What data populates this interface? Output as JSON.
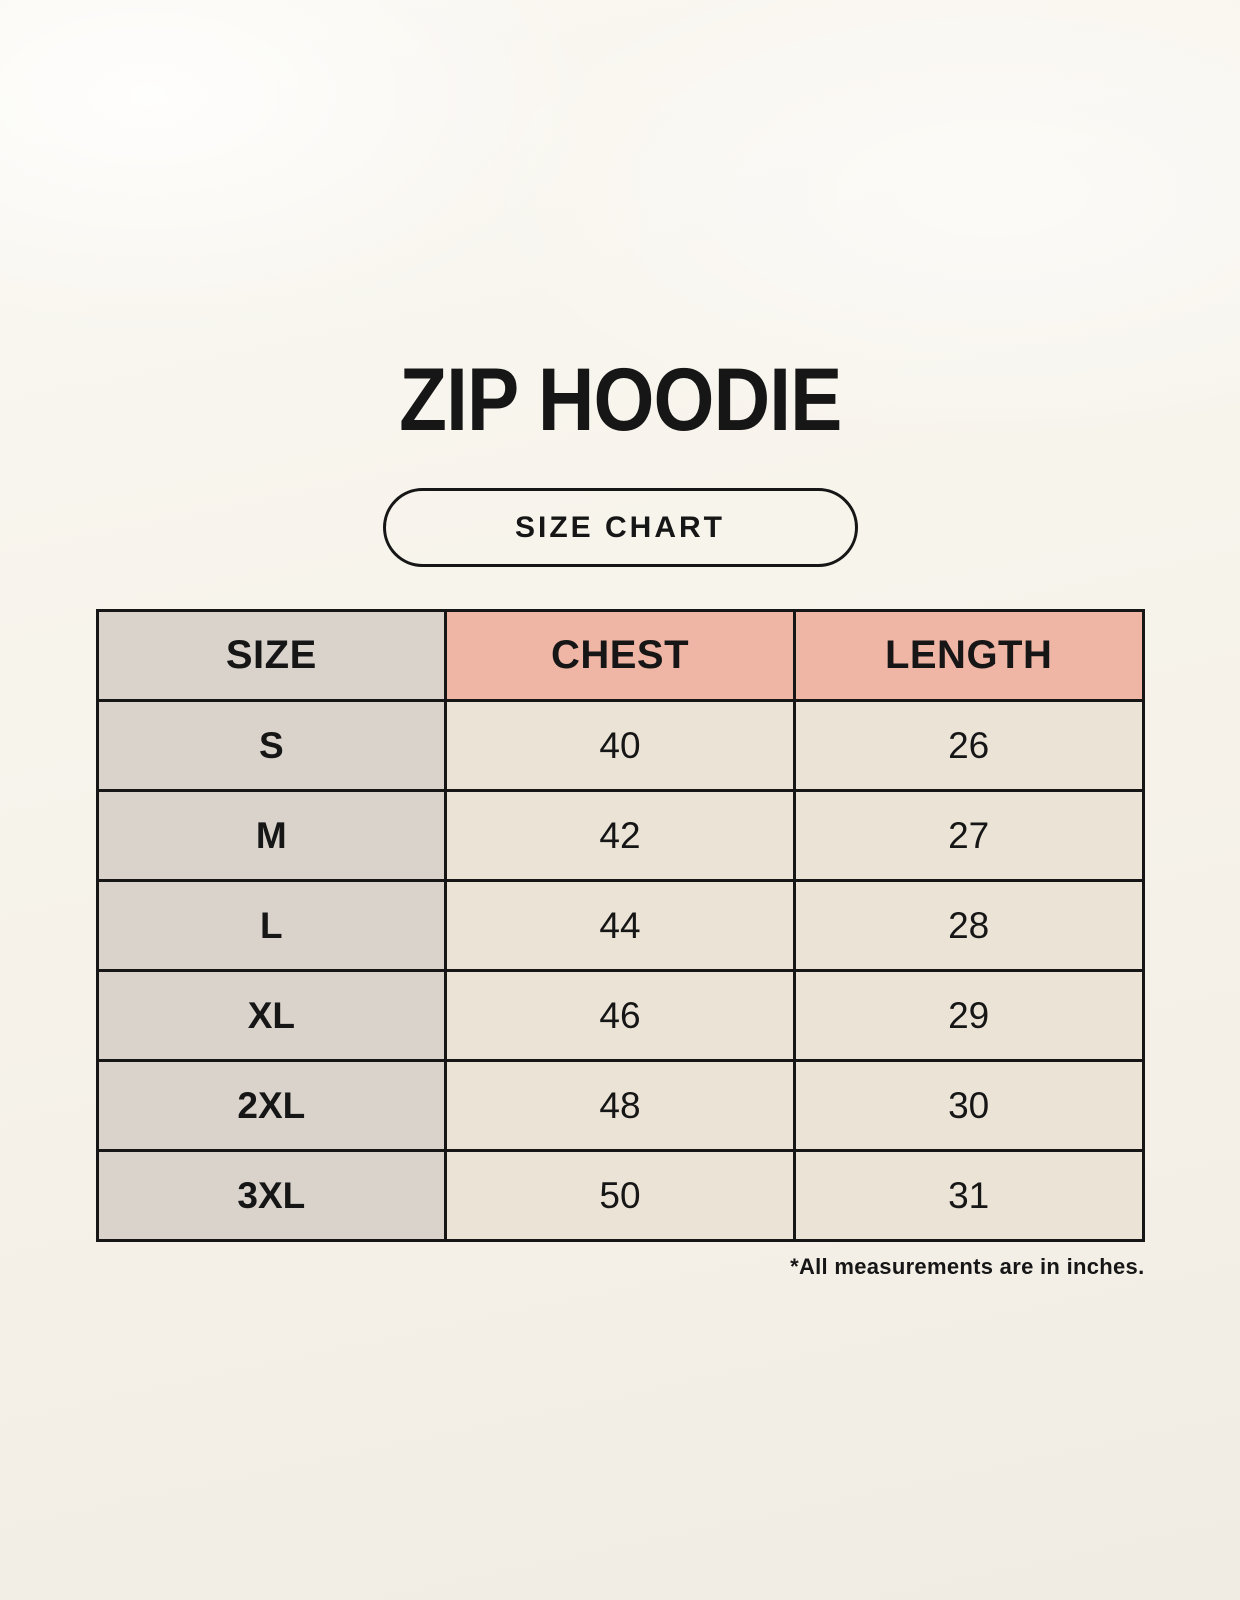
{
  "header": {
    "title": "ZIP HOODIE",
    "badge_label": "SIZE CHART"
  },
  "footnote": "*All measurements are in inches.",
  "chart_data": {
    "type": "table",
    "title": "ZIP HOODIE",
    "subtitle": "SIZE CHART",
    "columns": [
      "SIZE",
      "CHEST",
      "LENGTH"
    ],
    "rows": [
      [
        "S",
        40,
        26
      ],
      [
        "M",
        42,
        27
      ],
      [
        "L",
        44,
        28
      ],
      [
        "XL",
        46,
        29
      ],
      [
        "2XL",
        48,
        30
      ],
      [
        "3XL",
        50,
        31
      ]
    ],
    "footnote": "*All measurements are in inches.",
    "units": "inches"
  },
  "colors": {
    "page_bg": "#f7f4ec",
    "label_cell_bg": "#d9d3cc",
    "accent_header_bg": "#efb5a5",
    "value_cell_bg": "#eae3d6",
    "border": "#161616",
    "text": "#161616"
  }
}
